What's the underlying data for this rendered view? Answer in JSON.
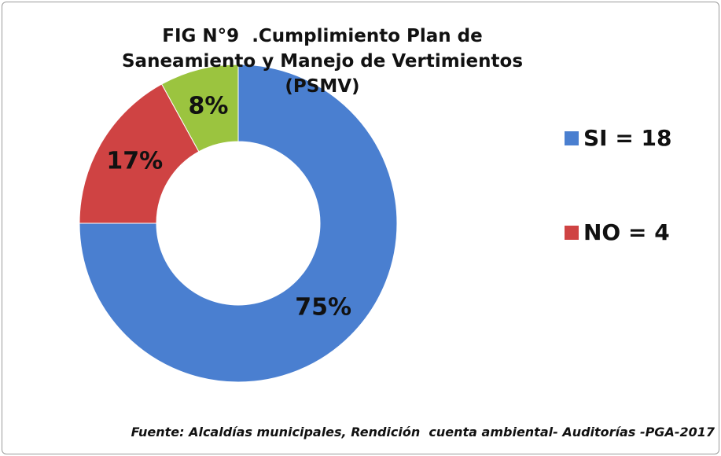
{
  "chart_data": {
    "type": "pie",
    "donut": true,
    "title": "FIG N°9  .Cumplimiento Plan de Saneamiento y Manejo de Vertimientos (PSMV)",
    "categories": [
      "SI = 18",
      "NO = 4",
      null
    ],
    "values": [
      75,
      17,
      8
    ],
    "value_labels": [
      "75%",
      "17%",
      "8%"
    ],
    "colors": [
      "#4a7fd0",
      "#cf4343",
      "#9bc43f"
    ],
    "legend": "right",
    "source": "Fuente: Alcaldías municipales, Rendición  cuenta ambiental- Auditorías -PGA-2017"
  }
}
